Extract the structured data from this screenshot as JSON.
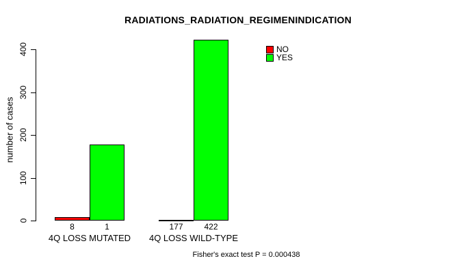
{
  "chart_data": {
    "type": "bar",
    "title": "RADIATIONS_RADIATION_REGIMENINDICATION",
    "ylabel": "number of cases",
    "xlabel": "",
    "categories": [
      "4Q LOSS MUTATED",
      "4Q LOSS WILD-TYPE"
    ],
    "series": [
      {
        "name": "NO",
        "color": "#ff0000",
        "values": [
          8,
          1
        ]
      },
      {
        "name": "YES",
        "color": "#00ff00",
        "values": [
          177,
          422
        ]
      }
    ],
    "bar_count_labels": [
      [
        "8",
        "177"
      ],
      [
        "1",
        "422"
      ]
    ],
    "yticks": [
      0,
      100,
      200,
      300,
      400
    ],
    "ylim": [
      0,
      430
    ],
    "grid": false,
    "legend_position": "top-right",
    "annotation": "Fisher's exact test P = 0.000438"
  },
  "colors": {
    "background": "#ffffff",
    "axis": "#000000",
    "text": "#000000",
    "no": "#ff0000",
    "yes": "#00ff00"
  }
}
